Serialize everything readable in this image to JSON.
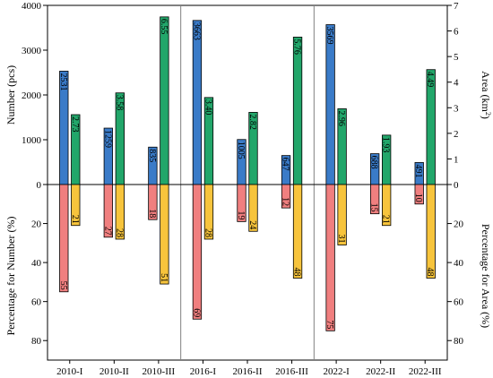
{
  "chart_data": {
    "type": "bar",
    "categories": [
      "2010-I",
      "2010-II",
      "2010-III",
      "2016-I",
      "2016-II",
      "2016-III",
      "2022-I",
      "2022-II",
      "2022-III"
    ],
    "axes": {
      "y_left_top": {
        "label": "Number (pcs)",
        "range": [
          0,
          4000
        ],
        "ticks": [
          "0",
          "1000",
          "2000",
          "3000",
          "4000"
        ]
      },
      "y_right_top": {
        "label": "Area (km²)",
        "range": [
          0,
          7
        ],
        "ticks": [
          "0",
          "1",
          "2",
          "3",
          "4",
          "5",
          "6",
          "7"
        ]
      },
      "y_left_bottom": {
        "label": "Percentage for Number (%)",
        "range": [
          0,
          90
        ],
        "inverted": true,
        "ticks": [
          "0",
          "20",
          "40",
          "60",
          "80"
        ]
      },
      "y_right_bottom": {
        "label": "Percentage for Area (%)",
        "range": [
          0,
          90
        ],
        "inverted": true,
        "ticks": [
          "0",
          "20",
          "40",
          "60",
          "80"
        ]
      }
    },
    "series": [
      {
        "color": "#3a7bc8",
        "values": [
          2531,
          1259,
          835,
          3663,
          1005,
          647,
          3569,
          688,
          491
        ],
        "labels": [
          "2531",
          "1259",
          "835",
          "3663",
          "1005",
          "647",
          "3569",
          "688",
          "491"
        ]
      },
      {
        "color": "#22a66a",
        "values": [
          2.73,
          3.58,
          6.55,
          3.4,
          2.82,
          5.76,
          2.96,
          1.93,
          4.49
        ],
        "labels": [
          "2.73",
          "3.58",
          "6.55",
          "3.40",
          "2.82",
          "5.76",
          "2.96",
          "1.93",
          "4.49"
        ]
      },
      {
        "color": "#f07f7f",
        "values": [
          55,
          27,
          18,
          69,
          19,
          12,
          75,
          15,
          10
        ],
        "labels": [
          "55",
          "27",
          "18",
          "69",
          "19",
          "12",
          "75",
          "15",
          "10"
        ]
      },
      {
        "color": "#f7c43c",
        "values": [
          21,
          28,
          51,
          28,
          24,
          48,
          31,
          21,
          48
        ],
        "labels": [
          "21",
          "28",
          "51",
          "28",
          "24",
          "48",
          "31",
          "21",
          "48"
        ]
      }
    ],
    "grid": false,
    "group_separators_after": [
      2,
      5
    ]
  }
}
